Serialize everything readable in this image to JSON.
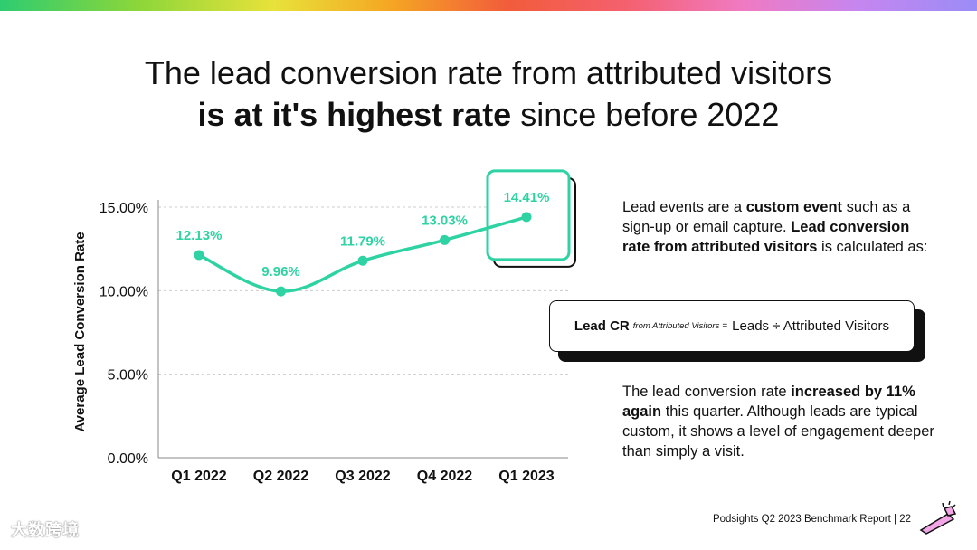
{
  "headline": {
    "line1": "The lead conversion rate from attributed visitors",
    "line2_bold": "is at it's highest rate",
    "line2_rest": " since before 2022"
  },
  "colors": {
    "accent": "#2fd3a3",
    "text": "#111111",
    "grid": "#cccccc"
  },
  "chart_data": {
    "type": "line",
    "categories": [
      "Q1 2022",
      "Q2 2022",
      "Q3 2022",
      "Q4 2022",
      "Q1 2023"
    ],
    "values": [
      12.13,
      9.96,
      11.79,
      13.03,
      14.41
    ],
    "data_labels": [
      "12.13%",
      "9.96%",
      "11.79%",
      "13.03%",
      "14.41%"
    ],
    "ylabel": "Average Lead Conversion Rate",
    "xlabel": "",
    "ylim": [
      0,
      15
    ],
    "yticks": [
      0,
      5,
      10,
      15
    ],
    "ytick_labels": [
      "0.00%",
      "5.00%",
      "10.00%",
      "15.00%"
    ],
    "grid": true,
    "highlighted_index": 4
  },
  "desc1": {
    "t1": "Lead events are a ",
    "b1": "custom event",
    "t2": " such as a sign-up or email capture. ",
    "b2": "Lead conversion rate from attributed visitors",
    "t3": " is calculated as:"
  },
  "formula": {
    "bold": "Lead CR",
    "sub": "from Attributed Visitors",
    "eq": "=",
    "rest": "Leads ÷ Attributed Visitors"
  },
  "desc2": {
    "t1": "The lead conversion rate ",
    "b1": "increased by 11% again",
    "t2": " this quarter. Although leads are typical custom, it shows a level of engagement deeper than simply a visit."
  },
  "footer": {
    "text": "Podsights Q2 2023 Benchmark Report | 22"
  },
  "watermark": {
    "text": "大数跨境"
  },
  "icons": {
    "logo": "podsights-logo-icon"
  }
}
